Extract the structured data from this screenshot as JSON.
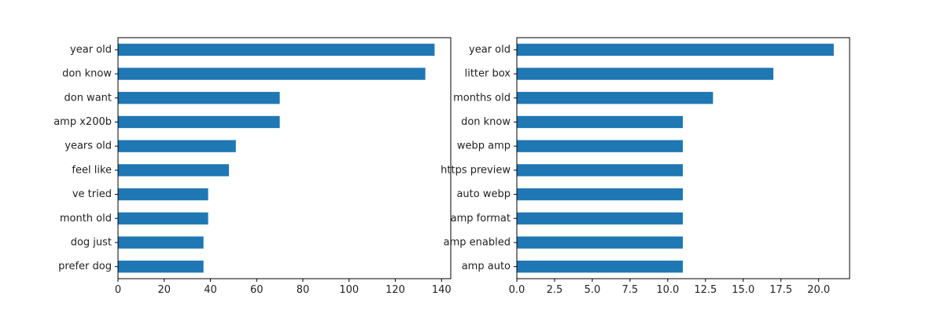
{
  "chart_data": [
    {
      "type": "bar",
      "orientation": "horizontal",
      "title": "",
      "xlabel": "",
      "ylabel": "",
      "categories": [
        "year old",
        "don know",
        "don want",
        "amp x200b",
        "years old",
        "feel like",
        "ve tried",
        "month old",
        "dog just",
        "prefer dog"
      ],
      "values": [
        137,
        133,
        70,
        70,
        51,
        48,
        39,
        39,
        37,
        37
      ],
      "xlim": [
        0,
        144
      ],
      "xticks": [
        0,
        20,
        40,
        60,
        80,
        100,
        120,
        140
      ],
      "xtick_labels": [
        "0",
        "20",
        "40",
        "60",
        "80",
        "100",
        "120",
        "140"
      ],
      "color": "#1f77b4",
      "grid": false
    },
    {
      "type": "bar",
      "orientation": "horizontal",
      "title": "",
      "xlabel": "",
      "ylabel": "",
      "categories": [
        "year old",
        "litter box",
        "months old",
        "don know",
        "webp amp",
        "https preview",
        "auto webp",
        "amp format",
        "amp enabled",
        "amp auto"
      ],
      "values": [
        21,
        17,
        13,
        11,
        11,
        11,
        11,
        11,
        11,
        11
      ],
      "xlim": [
        0,
        22.05
      ],
      "xticks": [
        0,
        2.5,
        5,
        7.5,
        10,
        12.5,
        15,
        17.5,
        20
      ],
      "xtick_labels": [
        "0.0",
        "2.5",
        "5.0",
        "7.5",
        "10.0",
        "12.5",
        "15.0",
        "17.5",
        "20.0"
      ],
      "color": "#1f77b4",
      "grid": false
    }
  ]
}
